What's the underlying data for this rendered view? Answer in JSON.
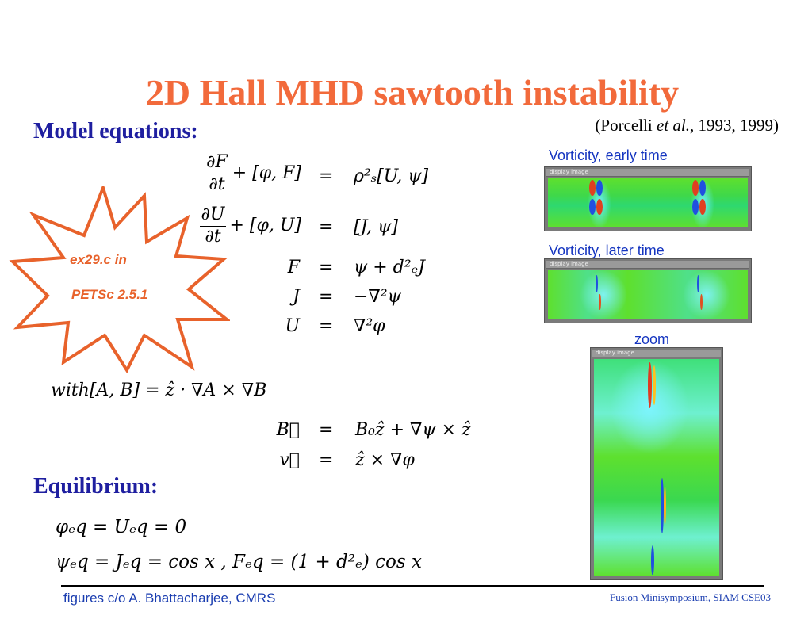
{
  "title": "2D Hall MHD sawtooth instability",
  "model_heading": "Model equations:",
  "citation": {
    "pre": "(Porcelli ",
    "etal": "et al.,",
    "post": " 1993, 1999)"
  },
  "burst": {
    "line1": "ex29.c in",
    "line2": "PETSc 2.5.1",
    "color": "#e8622b"
  },
  "equations": {
    "eq1": {
      "lhs_num": "∂F",
      "lhs_den": "∂t",
      "lhs_tail": "+ [φ, F]",
      "rhs": "ρ²ₛ[U, ψ]"
    },
    "eq2": {
      "lhs_num": "∂U",
      "lhs_den": "∂t",
      "lhs_tail": "+ [φ, U]",
      "rhs": "[J, ψ]"
    },
    "eq3": {
      "lhs": "F",
      "rhs": "ψ + d²ₑJ"
    },
    "eq4": {
      "lhs": "J",
      "rhs": "−∇²ψ"
    },
    "eq5": {
      "lhs": "U",
      "rhs": "∇²φ"
    },
    "eq_sign": "=",
    "with": "with[A, B] = ẑ · ∇A × ∇B",
    "eqB": {
      "lhs": "B⃗",
      "rhs": "B₀ẑ + ∇ψ × ẑ"
    },
    "eqV": {
      "lhs": "v⃗",
      "rhs": "ẑ × ∇φ"
    }
  },
  "equilibrium_heading": "Equilibrium:",
  "equilibrium": {
    "line1": "φₑq = Uₑq = 0",
    "line2": "ψₑq = Jₑq = cos x  ,   Fₑq = (1 + d²ₑ) cos x"
  },
  "figures": {
    "early_caption": "Vorticity, early time",
    "later_caption": "Vorticity, later time",
    "zoom_caption": "zoom",
    "window_title": "display image"
  },
  "footer": {
    "left": "figures c/o A. Bhattacharjee, CMRS",
    "right": "Fusion Minisymposium, SIAM CSE03"
  },
  "colors": {
    "title": "#f26a3b",
    "heading": "#1f1fa0",
    "caption": "#1535c0",
    "field": "#5ee02e"
  }
}
